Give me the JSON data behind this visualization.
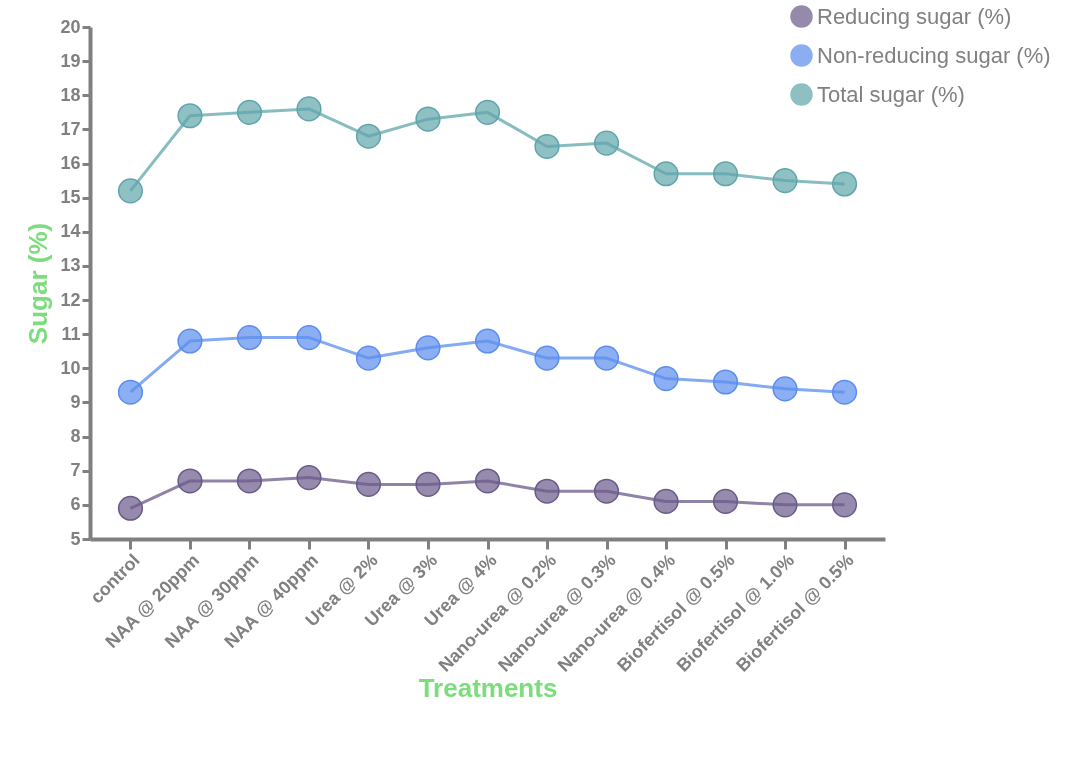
{
  "chart_data": {
    "type": "line",
    "xlabel": "Treatments",
    "ylabel": "Sugar (%)",
    "categories": [
      "control",
      "NAA @ 20ppm",
      "NAA @ 30ppm",
      "NAA @ 40ppm",
      "Urea @ 2%",
      "Urea @ 3%",
      "Urea @ 4%",
      "Nano-urea @ 0.2%",
      "Nano-urea @ 0.3%",
      "Nano-urea @ 0.4%",
      "Biofertisol @ 0.5%",
      "Biofertisol @ 1.0%",
      "Biofertisol @ 0.5%"
    ],
    "series": [
      {
        "name": "Reducing sugar (%)",
        "color": "#6a5a8a",
        "values": [
          5.9,
          6.7,
          6.7,
          6.8,
          6.6,
          6.6,
          6.7,
          6.4,
          6.4,
          6.1,
          6.1,
          6.0,
          6.0
        ]
      },
      {
        "name": "Non-reducing sugar (%)",
        "color": "#5b8def",
        "values": [
          9.3,
          10.8,
          10.9,
          10.9,
          10.3,
          10.6,
          10.8,
          10.3,
          10.3,
          9.7,
          9.6,
          9.4,
          9.3
        ]
      },
      {
        "name": "Total sugar (%)",
        "color": "#5fa5ab",
        "values": [
          15.2,
          17.4,
          17.5,
          17.6,
          16.8,
          17.3,
          17.5,
          16.5,
          16.6,
          15.7,
          15.7,
          15.5,
          15.4
        ]
      }
    ],
    "ylim": [
      5,
      20
    ],
    "yticks": [
      5,
      6,
      7,
      8,
      9,
      10,
      11,
      12,
      13,
      14,
      15,
      16,
      17,
      18,
      19,
      20
    ],
    "grid": false,
    "legend": "top right",
    "marker": "circle",
    "line_style": "solid"
  }
}
